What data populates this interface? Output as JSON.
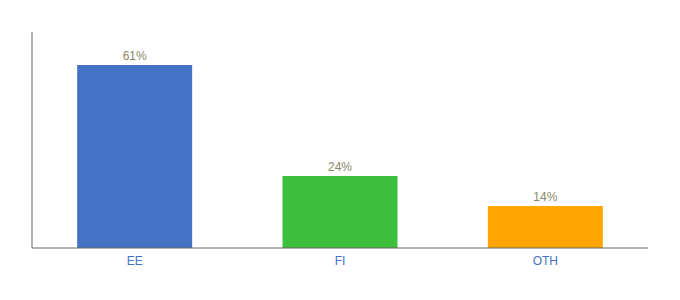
{
  "chart_data": {
    "type": "bar",
    "categories": [
      "EE",
      "FI",
      "OTH"
    ],
    "values": [
      61,
      24,
      14
    ],
    "value_labels": [
      "61%",
      "24%",
      "14%"
    ],
    "colors": [
      "#4472C4",
      "#3DBE3D",
      "#FFA500"
    ],
    "ylim": [
      0,
      72
    ],
    "grid": false,
    "data_labels": true,
    "tick_labels": "x"
  }
}
